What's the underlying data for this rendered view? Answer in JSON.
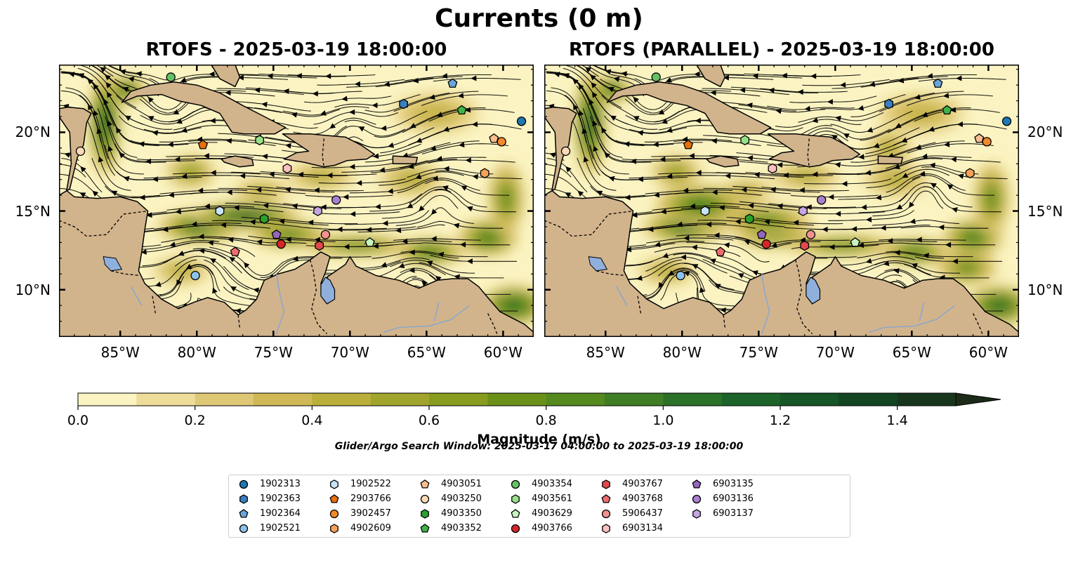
{
  "figure": {
    "title": "Currents (0 m)",
    "panels": [
      {
        "title": "RTOFS - 2025-03-19 18:00:00",
        "variant": "rtofs"
      },
      {
        "title": "RTOFS (PARALLEL) - 2025-03-19 18:00:00",
        "variant": "parallel"
      }
    ],
    "map_extent": {
      "lon": [
        -89,
        -58
      ],
      "lat": [
        7,
        24.3
      ]
    },
    "lon_ticks": [
      "85°W",
      "80°W",
      "75°W",
      "70°W",
      "65°W",
      "60°W"
    ],
    "lon_tick_values": [
      -85,
      -80,
      -75,
      -70,
      -65,
      -60
    ],
    "lat_ticks": [
      "10°N",
      "15°N",
      "20°N"
    ],
    "lat_tick_values": [
      10,
      15,
      20
    ],
    "colors": {
      "land": "#d2b48c",
      "lakes": "#8fb0dc",
      "rivers": "#8fa7c8",
      "streamlines": "#000000"
    }
  },
  "colorbar": {
    "label": "Magnitude (m/s)",
    "ticks": [
      "0.0",
      "0.2",
      "0.4",
      "0.6",
      "0.8",
      "1.0",
      "1.2",
      "1.4"
    ],
    "tick_values": [
      0.0,
      0.2,
      0.4,
      0.6,
      0.8,
      1.0,
      1.2,
      1.4
    ],
    "range": [
      0,
      1.5
    ],
    "extend": "max",
    "colors": [
      "#fbf4c2",
      "#eedd9a",
      "#dfc875",
      "#cfb855",
      "#bbaf3b",
      "#a2a52c",
      "#889c1f",
      "#6c9119",
      "#548a1e",
      "#3f7e24",
      "#2b7128",
      "#1c6429",
      "#155526",
      "#144522",
      "#18361c",
      "#1b2b17"
    ]
  },
  "search_window": "Glider/Argo Search Window: 2025-03-17 04:00:00 to 2025-03-19 18:00:00",
  "legend": [
    {
      "id": "1902313",
      "color": "#1f77b4",
      "marker": "circle"
    },
    {
      "id": "1902363",
      "color": "#3a7fc0",
      "marker": "hexagon"
    },
    {
      "id": "1902364",
      "color": "#6aa5d9",
      "marker": "pentagon"
    },
    {
      "id": "1902521",
      "color": "#8cc3ea",
      "marker": "circle"
    },
    {
      "id": "1902522",
      "color": "#c6e3f8",
      "marker": "hexagon"
    },
    {
      "id": "2903766",
      "color": "#e6700a",
      "marker": "pentagon"
    },
    {
      "id": "3902457",
      "color": "#f28a2b",
      "marker": "circle"
    },
    {
      "id": "4902609",
      "color": "#f7a25a",
      "marker": "hexagon"
    },
    {
      "id": "4903051",
      "color": "#fbbe8e",
      "marker": "pentagon"
    },
    {
      "id": "4903250",
      "color": "#fdd9b8",
      "marker": "circle"
    },
    {
      "id": "4903350",
      "color": "#2ca02c",
      "marker": "hexagon"
    },
    {
      "id": "4903352",
      "color": "#3fb34a",
      "marker": "pentagon"
    },
    {
      "id": "4903354",
      "color": "#66c266",
      "marker": "circle"
    },
    {
      "id": "4903561",
      "color": "#98df8a",
      "marker": "hexagon"
    },
    {
      "id": "4903629",
      "color": "#c7f5c0",
      "marker": "pentagon"
    },
    {
      "id": "4903766",
      "color": "#d62728",
      "marker": "circle"
    },
    {
      "id": "4903767",
      "color": "#e04a4a",
      "marker": "hexagon"
    },
    {
      "id": "4903768",
      "color": "#ec6d6e",
      "marker": "pentagon"
    },
    {
      "id": "5906437",
      "color": "#f29191",
      "marker": "circle"
    },
    {
      "id": "6903134",
      "color": "#fbc0c0",
      "marker": "hexagon"
    },
    {
      "id": "6903135",
      "color": "#9467bd",
      "marker": "pentagon"
    },
    {
      "id": "6903136",
      "color": "#a97fcf",
      "marker": "circle"
    },
    {
      "id": "6903137",
      "color": "#c5a5e3",
      "marker": "hexagon"
    }
  ],
  "observation_markers": [
    {
      "id": "4903354",
      "lon": -81.7,
      "lat": 23.5
    },
    {
      "id": "1902364",
      "lon": -63.3,
      "lat": 23.1
    },
    {
      "id": "1902363",
      "lon": -66.5,
      "lat": 21.8
    },
    {
      "id": "4903352",
      "lon": -62.7,
      "lat": 21.4
    },
    {
      "id": "1902313",
      "lon": -58.8,
      "lat": 20.7
    },
    {
      "id": "4903561",
      "lon": -75.9,
      "lat": 19.5
    },
    {
      "id": "4903051",
      "lon": -60.6,
      "lat": 19.6
    },
    {
      "id": "3902457",
      "lon": -60.1,
      "lat": 19.4
    },
    {
      "id": "2903766",
      "lon": -79.6,
      "lat": 19.2
    },
    {
      "id": "4903250",
      "lon": -87.6,
      "lat": 18.8
    },
    {
      "id": "6903134",
      "lon": -74.1,
      "lat": 17.7
    },
    {
      "id": "4902609",
      "lon": -61.2,
      "lat": 17.4
    },
    {
      "id": "6903136",
      "lon": -70.9,
      "lat": 15.7
    },
    {
      "id": "6903137",
      "lon": -72.1,
      "lat": 15.0
    },
    {
      "id": "1902522",
      "lon": -78.5,
      "lat": 15.0
    },
    {
      "id": "4903350",
      "lon": -75.6,
      "lat": 14.5
    },
    {
      "id": "6903135",
      "lon": -74.8,
      "lat": 13.5
    },
    {
      "id": "5906437",
      "lon": -71.6,
      "lat": 13.5
    },
    {
      "id": "4903629",
      "lon": -68.7,
      "lat": 13.0
    },
    {
      "id": "4903766",
      "lon": -74.5,
      "lat": 12.9
    },
    {
      "id": "4903767",
      "lon": -72.0,
      "lat": 12.8
    },
    {
      "id": "4903768",
      "lon": -77.5,
      "lat": 12.4
    },
    {
      "id": "1902521",
      "lon": -80.1,
      "lat": 10.9
    }
  ]
}
